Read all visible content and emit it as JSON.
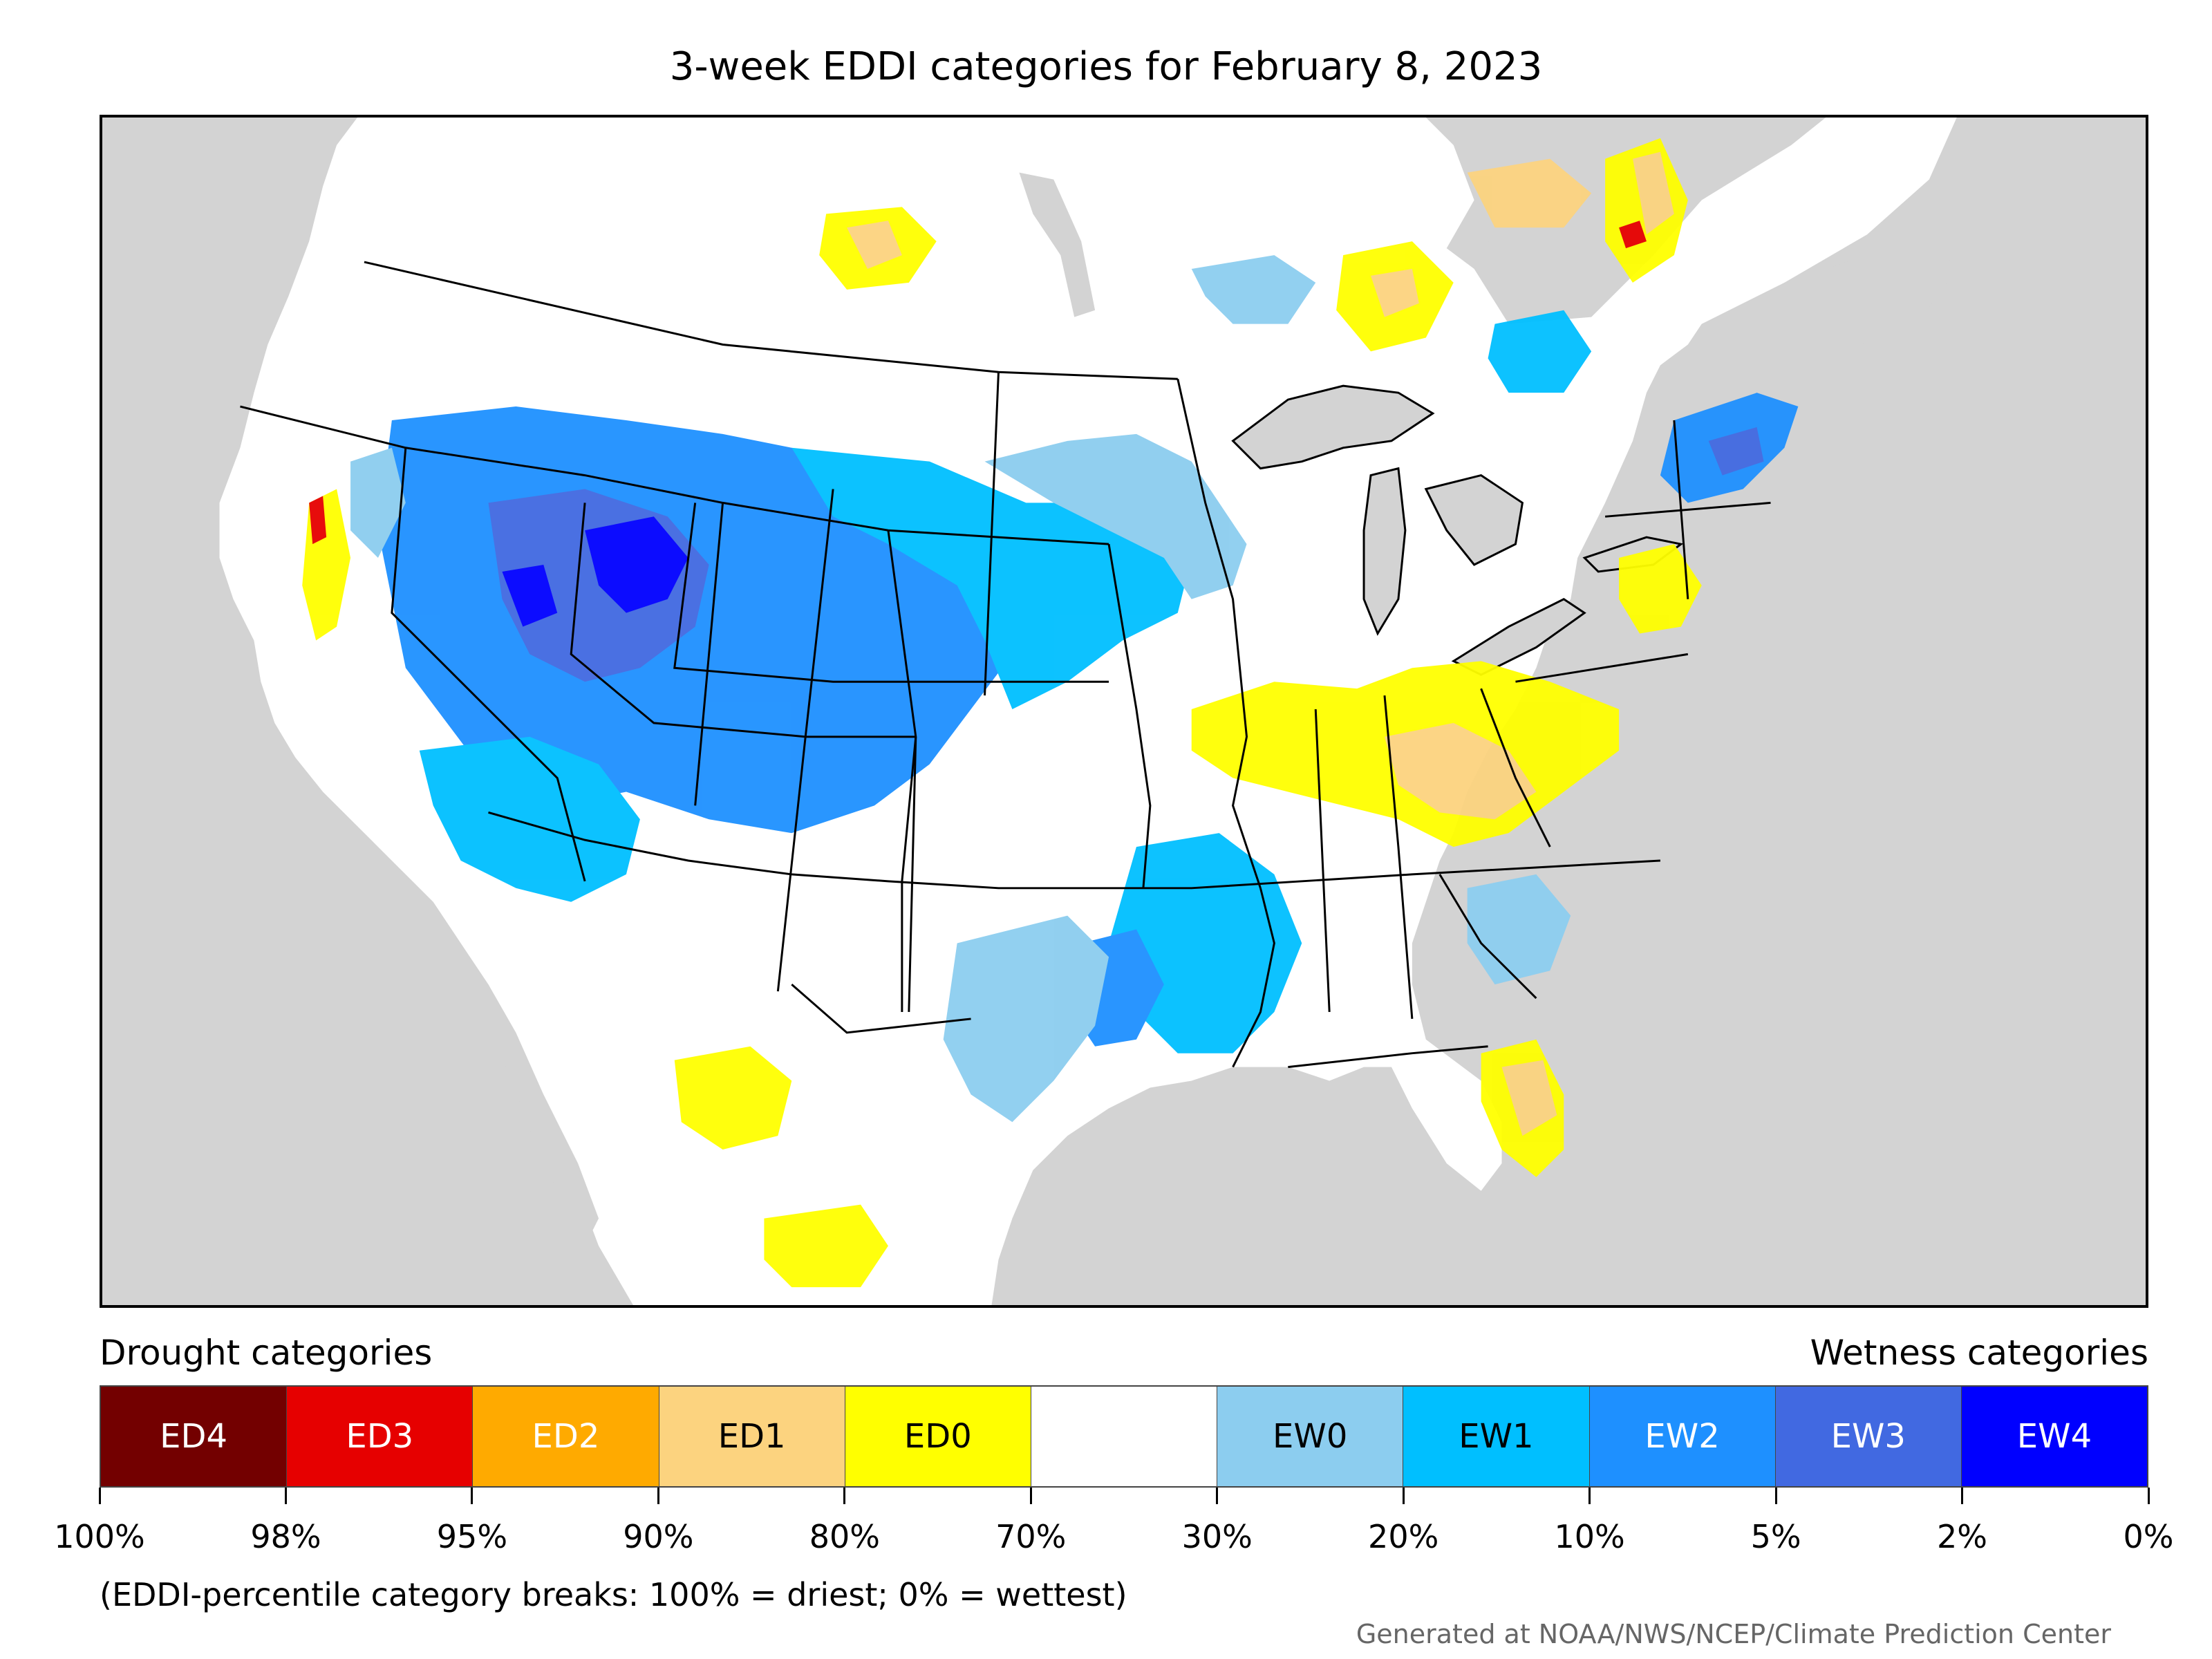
{
  "title": "3-week EDDI categories for February 8, 2023",
  "legend": {
    "left_label": "Drought categories",
    "right_label": "Wetness categories",
    "categories": [
      {
        "label": "ED4",
        "color": "#730000",
        "text_color": "#ffffff"
      },
      {
        "label": "ED3",
        "color": "#e60000",
        "text_color": "#ffffff"
      },
      {
        "label": "ED2",
        "color": "#ffaa00",
        "text_color": "#ffffff"
      },
      {
        "label": "ED1",
        "color": "#fcd37f",
        "text_color": "#000000"
      },
      {
        "label": "ED0",
        "color": "#ffff00",
        "text_color": "#000000"
      },
      {
        "label": "",
        "color": "#ffffff",
        "text_color": "#000000"
      },
      {
        "label": "EW0",
        "color": "#8ccdef",
        "text_color": "#000000"
      },
      {
        "label": "EW1",
        "color": "#00bfff",
        "text_color": "#000000"
      },
      {
        "label": "EW2",
        "color": "#1e90ff",
        "text_color": "#ffffff"
      },
      {
        "label": "EW3",
        "color": "#4169e1",
        "text_color": "#ffffff"
      },
      {
        "label": "EW4",
        "color": "#0000ff",
        "text_color": "#ffffff"
      }
    ],
    "tick_labels": [
      "100%",
      "98%",
      "95%",
      "90%",
      "80%",
      "70%",
      "30%",
      "20%",
      "10%",
      "5%",
      "2%",
      "0%"
    ]
  },
  "note": "(EDDI-percentile category breaks: 100% = driest; 0% = wettest)",
  "credit": "Generated at NOAA/NWS/NCEP/Climate Prediction Center",
  "colors": {
    "land": "#ffffff",
    "water": "#d3d3d3",
    "border": "#000000"
  }
}
